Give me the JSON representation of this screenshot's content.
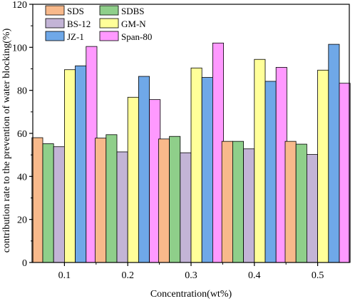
{
  "chart_data": {
    "type": "bar",
    "title": "",
    "xlabel": "Concentration(wt%)",
    "ylabel": "contribution rate to the prevention of water blocking(%)",
    "categories": [
      "0.1",
      "0.2",
      "0.3",
      "0.4",
      "0.5"
    ],
    "ylim": [
      0,
      120
    ],
    "yticks": [
      "0",
      "20",
      "40",
      "60",
      "80",
      "100",
      "120"
    ],
    "grid": false,
    "legend_position": "top-left",
    "series": [
      {
        "name": "SDS",
        "color": "#f8b98b",
        "values": [
          58.0,
          57.8,
          57.4,
          56.3,
          56.3
        ]
      },
      {
        "name": "SDBS",
        "color": "#8fcf8a",
        "values": [
          55.2,
          59.4,
          58.6,
          56.3,
          55.0
        ]
      },
      {
        "name": "BS-12",
        "color": "#c3b4d6",
        "values": [
          53.8,
          51.4,
          51.0,
          52.8,
          50.2
        ]
      },
      {
        "name": "GM-N",
        "color": "#ffff99",
        "values": [
          89.6,
          76.8,
          90.4,
          94.4,
          89.4
        ]
      },
      {
        "name": "JZ-1",
        "color": "#6fa8e8",
        "values": [
          91.4,
          86.5,
          86.0,
          84.2,
          101.4
        ]
      },
      {
        "name": "Span-80",
        "color": "#ff99ff",
        "values": [
          100.4,
          75.7,
          102.0,
          90.7,
          83.3
        ]
      }
    ]
  }
}
